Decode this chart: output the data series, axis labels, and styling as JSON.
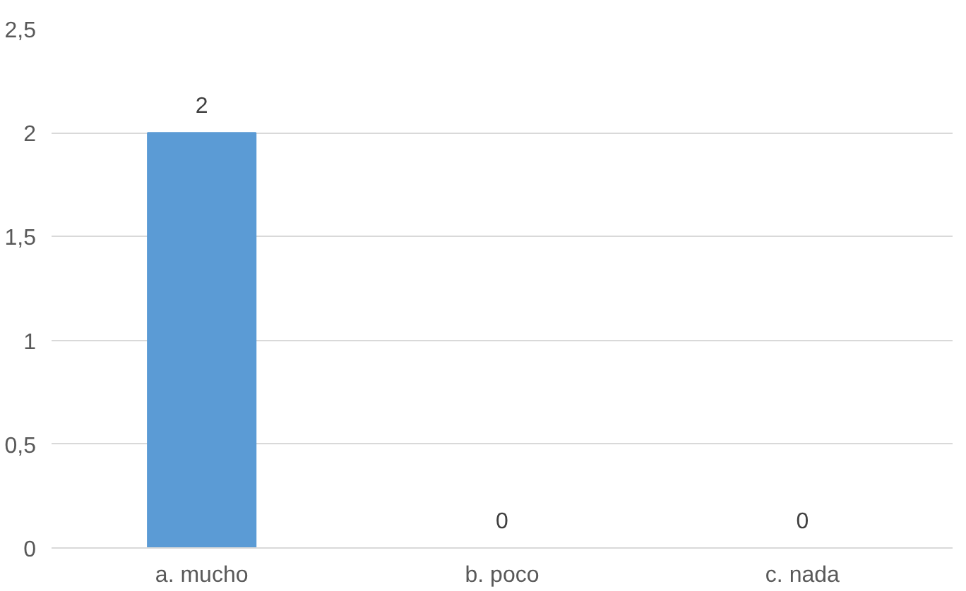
{
  "chart_data": {
    "type": "bar",
    "categories": [
      "a. mucho",
      "b. poco",
      "c. nada"
    ],
    "values": [
      2,
      0,
      0
    ],
    "color": "#5b9bd5",
    "ylim": [
      0,
      2.5
    ],
    "yticks": [
      0,
      {
        "value": 0.5,
        "label": "0,5"
      },
      1,
      {
        "value": 1.5,
        "label": "1,5"
      },
      2,
      {
        "value": 2.5,
        "label": "2,5"
      }
    ],
    "grid": "y",
    "data_labels": true
  }
}
